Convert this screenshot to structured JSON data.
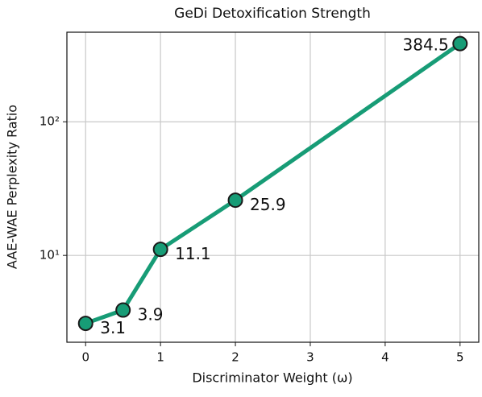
{
  "chart_data": {
    "type": "line",
    "title": "GeDi Detoxification Strength",
    "x_label": "Discriminator Weight (ω)",
    "y_label": "AAE-WAE Perplexity Ratio",
    "x": [
      0,
      0.5,
      1,
      2,
      5
    ],
    "values": [
      3.1,
      3.9,
      11.1,
      25.9,
      384.5
    ],
    "color": "#179c76",
    "xlim": [
      -0.25,
      5.25
    ],
    "xticks": [
      0,
      1,
      2,
      3,
      4,
      5
    ],
    "ylim": [
      2.24,
      468
    ],
    "yticks": [
      {
        "value": 10,
        "label": "10¹"
      },
      {
        "value": 100,
        "label": "10²"
      }
    ],
    "y_scale": "log",
    "grid": true
  }
}
